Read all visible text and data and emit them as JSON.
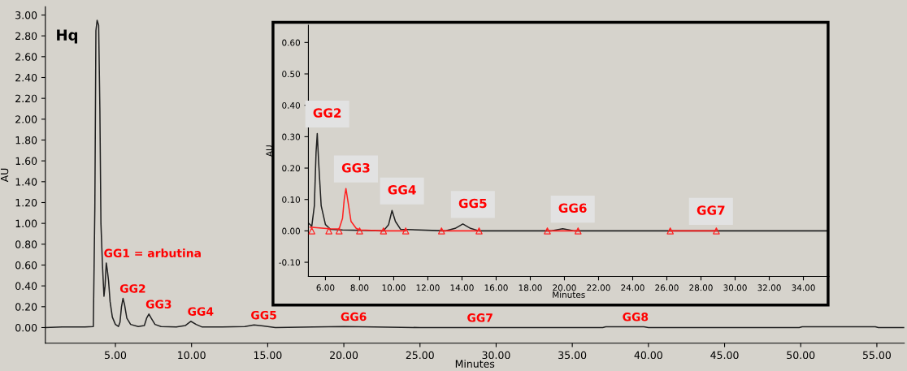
{
  "chart_data": [
    {
      "type": "line",
      "xlabel": "Minutes",
      "ylabel": "AU",
      "xlim": [
        0.4,
        56.8
      ],
      "ylim": [
        -0.15,
        3.08
      ],
      "xticks": [
        {
          "value": 5,
          "label": "5.00"
        },
        {
          "value": 10,
          "label": "10.00"
        },
        {
          "value": 15,
          "label": "15.00"
        },
        {
          "value": 20,
          "label": "20.00"
        },
        {
          "value": 25,
          "label": "25.00"
        },
        {
          "value": 30,
          "label": "30.00"
        },
        {
          "value": 35,
          "label": "35.00"
        },
        {
          "value": 40,
          "label": "40.00"
        },
        {
          "value": 45,
          "label": "45.00"
        },
        {
          "value": 50,
          "label": "50.00"
        },
        {
          "value": 55,
          "label": "55.00"
        }
      ],
      "yticks": [
        {
          "value": 0,
          "label": "0.00"
        },
        {
          "value": 0.2,
          "label": "0.20"
        },
        {
          "value": 0.4,
          "label": "0.40"
        },
        {
          "value": 0.6,
          "label": "0.60"
        },
        {
          "value": 0.8,
          "label": "0.80"
        },
        {
          "value": 1.0,
          "label": "1.00"
        },
        {
          "value": 1.2,
          "label": "1.20"
        },
        {
          "value": 1.4,
          "label": "1.40"
        },
        {
          "value": 1.6,
          "label": "1.60"
        },
        {
          "value": 1.8,
          "label": "1.80"
        },
        {
          "value": 2.0,
          "label": "2.00"
        },
        {
          "value": 2.2,
          "label": "2.20"
        },
        {
          "value": 2.4,
          "label": "2.40"
        },
        {
          "value": 2.6,
          "label": "2.60"
        },
        {
          "value": 2.8,
          "label": "2.80"
        },
        {
          "value": 3.0,
          "label": "3.00"
        }
      ],
      "grid": false,
      "series": [
        {
          "color": "#202020",
          "x": [
            0.4,
            1.5,
            3.0,
            3.55,
            3.65,
            3.72,
            3.8,
            3.9,
            3.98,
            4.05,
            4.15,
            4.25,
            4.32,
            4.4,
            4.47,
            4.55,
            4.65,
            4.8,
            5.0,
            5.2,
            5.3,
            5.4,
            5.5,
            5.6,
            5.75,
            6.0,
            6.5,
            6.9,
            7.05,
            7.2,
            7.35,
            7.6,
            8.0,
            9.0,
            9.6,
            9.95,
            10.3,
            10.7,
            12.0,
            13.5,
            14.1,
            14.7,
            15.5,
            18.0,
            20.0,
            22.0,
            25.0,
            30.0,
            37.0,
            37.2,
            39.7,
            40.0,
            49.9,
            50.1,
            54.9,
            55.1,
            56.8
          ],
          "values": [
            0.0,
            0.005,
            0.005,
            0.01,
            1.15,
            2.85,
            2.95,
            2.9,
            2.1,
            1.0,
            0.6,
            0.3,
            0.4,
            0.62,
            0.55,
            0.45,
            0.25,
            0.1,
            0.03,
            0.01,
            0.05,
            0.2,
            0.28,
            0.22,
            0.09,
            0.03,
            0.01,
            0.02,
            0.09,
            0.13,
            0.09,
            0.03,
            0.01,
            0.005,
            0.02,
            0.06,
            0.03,
            0.005,
            0.005,
            0.01,
            0.025,
            0.015,
            0.0,
            0.005,
            0.01,
            0.005,
            0.0,
            0.0,
            0.0,
            0.008,
            0.008,
            0.0,
            0.0,
            0.008,
            0.008,
            0.0,
            0.0
          ]
        }
      ],
      "annotations": [
        "Hq",
        {
          "text": "GG1 = arbutina",
          "x": 4.45,
          "y": 0.62
        },
        {
          "text": "GG2",
          "x": 5.5,
          "y": 0.28
        },
        {
          "text": "GG3",
          "x": 7.2,
          "y": 0.13
        },
        {
          "text": "GG4",
          "x": 9.95,
          "y": 0.06
        },
        {
          "text": "GG5",
          "x": 14.1,
          "y": 0.025
        },
        {
          "text": "GG6",
          "x": 20.0,
          "y": 0.01
        },
        {
          "text": "GG7",
          "x": 28.3,
          "y": 0.0
        },
        {
          "text": "GG8",
          "x": 38.5,
          "y": 0.008
        }
      ]
    },
    {
      "type": "line",
      "xlabel": "Minutes",
      "ylabel": "AU",
      "xlim": [
        5.0,
        35.5
      ],
      "ylim": [
        -0.145,
        0.655
      ],
      "xticks": [
        {
          "value": 6,
          "label": "6.00"
        },
        {
          "value": 8,
          "label": "8.00"
        },
        {
          "value": 10,
          "label": "10.00"
        },
        {
          "value": 12,
          "label": "12.00"
        },
        {
          "value": 14,
          "label": "14.00"
        },
        {
          "value": 16,
          "label": "16.00"
        },
        {
          "value": 18,
          "label": "18.00"
        },
        {
          "value": 20,
          "label": "20.00"
        },
        {
          "value": 22,
          "label": "22.00"
        },
        {
          "value": 24,
          "label": "24.00"
        },
        {
          "value": 26,
          "label": "26.00"
        },
        {
          "value": 28,
          "label": "28.00"
        },
        {
          "value": 30,
          "label": "30.00"
        },
        {
          "value": 32,
          "label": "32.00"
        },
        {
          "value": 34,
          "label": "34.00"
        }
      ],
      "yticks": [
        {
          "value": -0.1,
          "label": "-0.10"
        },
        {
          "value": 0,
          "label": "0.00"
        },
        {
          "value": 0.1,
          "label": "0.10"
        },
        {
          "value": 0.2,
          "label": "0.20"
        },
        {
          "value": 0.3,
          "label": "0.30"
        },
        {
          "value": 0.4,
          "label": "0.40"
        },
        {
          "value": 0.5,
          "label": "0.50"
        },
        {
          "value": 0.6,
          "label": "0.60"
        }
      ],
      "grid": false,
      "series": [
        {
          "color": "#202020",
          "x": [
            5.0,
            5.2,
            5.35,
            5.45,
            5.52,
            5.6,
            5.75,
            6.0,
            6.3,
            7.0,
            9.4,
            9.7,
            9.9,
            10.1,
            10.4,
            13.0,
            13.6,
            14.05,
            14.5,
            15.0,
            19.2,
            19.9,
            20.6,
            35.5
          ],
          "values": [
            0.025,
            0.015,
            0.08,
            0.25,
            0.31,
            0.22,
            0.08,
            0.02,
            0.005,
            0.003,
            0.0,
            0.02,
            0.065,
            0.03,
            0.005,
            0.0,
            0.008,
            0.022,
            0.008,
            0.0,
            0.0,
            0.007,
            0.0,
            0.0
          ]
        },
        {
          "color": "#ff2020",
          "x": [
            5.1,
            6.2,
            6.8,
            7.0,
            7.1,
            7.2,
            7.3,
            7.5,
            7.8,
            8.0,
            9.4,
            10.7,
            11.5,
            12.8,
            15.0,
            17.0,
            19.0,
            20.8,
            23.5,
            26.2,
            28.9
          ],
          "values": [
            0.012,
            0.007,
            0.006,
            0.04,
            0.1,
            0.135,
            0.1,
            0.03,
            0.008,
            0.003,
            0.0,
            0.0,
            null,
            0.0,
            0.0,
            null,
            0.0,
            0.0,
            null,
            0.0,
            0.0
          ]
        },
        {
          "type": "scatter",
          "marker": "triangle",
          "color": "#ff2020",
          "x": [
            5.2,
            6.2,
            6.8,
            8.0,
            9.4,
            10.7,
            12.8,
            15.0,
            19.0,
            20.8,
            26.2,
            28.9
          ],
          "values": [
            0.0,
            0.0,
            0.0,
            0.0,
            0.0,
            0.0,
            0.0,
            0.0,
            0.0,
            0.0,
            0.0,
            0.0
          ]
        }
      ],
      "annotations": [
        {
          "text": "GG2",
          "x": 5.52,
          "y": 0.31
        },
        {
          "text": "GG3",
          "x": 7.2,
          "y": 0.135
        },
        {
          "text": "GG4",
          "x": 9.9,
          "y": 0.065
        },
        {
          "text": "GG5",
          "x": 14.05,
          "y": 0.022
        },
        {
          "text": "GG6",
          "x": 19.9,
          "y": 0.007
        },
        {
          "text": "GG7",
          "x": 28.0,
          "y": 0.0
        }
      ]
    }
  ]
}
